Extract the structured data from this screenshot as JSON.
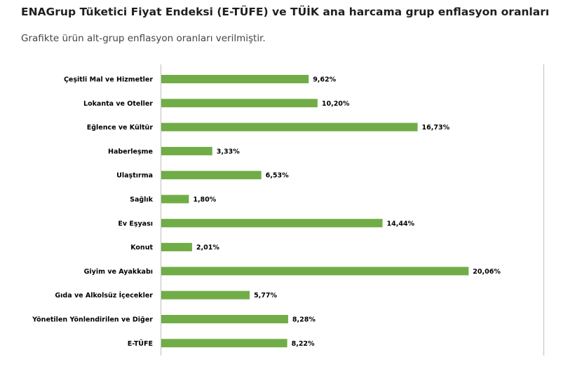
{
  "header": {
    "title": "ENAGrup Tüketici Fiyat Endeksi (E-TÜFE) ve TÜİK ana harcama grup enflasyon oranları",
    "subtitle": "Grafikte ürün alt-grup enflasyon oranları verilmiştir."
  },
  "colors": {
    "bar": "#70ad47",
    "axis": "#bfbfbf",
    "text": "#000000"
  },
  "chart_data": {
    "type": "bar",
    "orientation": "horizontal",
    "title": "",
    "xlabel": "",
    "ylabel": "",
    "grid": false,
    "xlim": [
      0,
      22
    ],
    "categories": [
      "Çeşitli Mal ve Hizmetler",
      "Lokanta ve Oteller",
      "Eğlence ve Kültür",
      "Haberleşme",
      "Ulaştırma",
      "Sağlık",
      "Ev Eşyası",
      "Konut",
      "Giyim ve Ayakkabı",
      "Gıda ve Alkolsüz İçecekler",
      "Yönetilen Yönlendirilen ve Diğer",
      "E-TÜFE"
    ],
    "values": [
      9.62,
      10.2,
      16.73,
      3.33,
      6.53,
      1.8,
      14.44,
      2.01,
      20.06,
      5.77,
      8.28,
      8.22
    ],
    "value_labels": [
      "9,62%",
      "10,20%",
      "16,73%",
      "3,33%",
      "6,53%",
      "1,80%",
      "14,44%",
      "2,01%",
      "20,06%",
      "5,77%",
      "8,28%",
      "8,22%"
    ]
  }
}
